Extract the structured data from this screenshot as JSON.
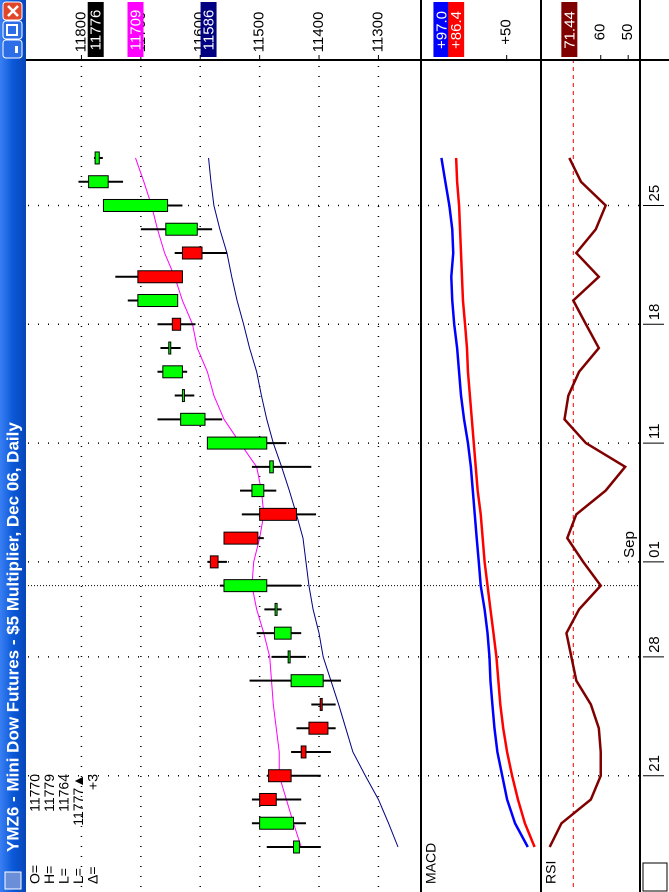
{
  "window_title": "YMZ6 - Mini Dow Futures - $5 Multiplier, Dec 06, Daily",
  "chart_data": [
    {
      "type": "candlestick",
      "categories": [
        null,
        null,
        null,
        "21",
        null,
        null,
        null,
        null,
        "28",
        null,
        null,
        null,
        "01",
        null,
        null,
        null,
        null,
        "11",
        null,
        null,
        null,
        null,
        "18",
        null,
        null,
        null,
        null,
        "25",
        null,
        null
      ],
      "month_label": "Sep",
      "open": [
        11433,
        11443,
        11500,
        11485,
        11430,
        11417,
        11398,
        11393,
        11451,
        11447,
        11473,
        11488,
        11583,
        11560,
        11500,
        11493,
        11477,
        11488,
        11592,
        11629,
        11630,
        11652,
        11647,
        11638,
        11705,
        11630,
        11605,
        11655,
        11755,
        11770
      ],
      "high": [
        11488,
        11513,
        11513,
        11488,
        11447,
        11438,
        11413,
        11517,
        11480,
        11505,
        11492,
        11567,
        11588,
        11560,
        11530,
        11533,
        11513,
        11588,
        11672,
        11643,
        11672,
        11667,
        11672,
        11722,
        11743,
        11643,
        11700,
        11763,
        11805,
        11779
      ],
      "low": [
        11397,
        11422,
        11430,
        11397,
        11380,
        11372,
        11372,
        11363,
        11422,
        11430,
        11463,
        11430,
        11555,
        11493,
        11405,
        11472,
        11413,
        11455,
        11563,
        11610,
        11622,
        11633,
        11608,
        11638,
        11630,
        11555,
        11580,
        11630,
        11730,
        11764
      ],
      "close": [
        11443,
        11500,
        11472,
        11447,
        11422,
        11385,
        11397,
        11447,
        11452,
        11475,
        11474,
        11560,
        11570,
        11503,
        11438,
        11513,
        11483,
        11588,
        11633,
        11630,
        11663,
        11653,
        11633,
        11705,
        11630,
        11597,
        11658,
        11763,
        11788,
        11777
      ],
      "up_color": "#00ff00",
      "down_color": "#ff0000",
      "overlays": [
        {
          "color": "#ff00ff",
          "values": [
            11430,
            11443,
            11455,
            11467,
            11467,
            11472,
            11477,
            11480,
            11483,
            11493,
            11505,
            11513,
            11510,
            11500,
            11493,
            11497,
            11505,
            11533,
            11560,
            11577,
            11588,
            11605,
            11613,
            11630,
            11643,
            11660,
            11672,
            11682,
            11695,
            11709
          ]
        },
        {
          "color": "#000080",
          "values": [
            11267,
            11283,
            11300,
            11322,
            11343,
            11355,
            11367,
            11380,
            11393,
            11400,
            11410,
            11417,
            11422,
            11427,
            11438,
            11450,
            11463,
            11477,
            11488,
            11497,
            11505,
            11517,
            11527,
            11538,
            11547,
            11555,
            11567,
            11577,
            11582,
            11586
          ]
        }
      ],
      "ylim": [
        11230,
        11890
      ],
      "yticks": [
        11300,
        11400,
        11500,
        11600,
        11700,
        11800
      ],
      "grid": true,
      "markers": [
        {
          "value": 11776,
          "color": "#000000"
        },
        {
          "value": 11709,
          "color": "#ff00ff"
        },
        {
          "value": 11586,
          "color": "#000080"
        }
      ],
      "readout": {
        "labels": [
          "O=",
          "H=",
          "L=",
          "L=",
          "Δ="
        ],
        "values": [
          11770,
          11779,
          11764,
          11777,
          3
        ],
        "value_labels": [
          "11770",
          "11779",
          "11764",
          "11777▲",
          "+3"
        ]
      }
    },
    {
      "type": "line",
      "label": "MACD",
      "series": [
        {
          "color": "#0000ff",
          "last_label": "+97.0",
          "values": [
            34.8,
            44.0,
            49.7,
            53.2,
            56.7,
            58.8,
            60.3,
            61.7,
            62.4,
            63.8,
            65.9,
            68.7,
            70.1,
            71.6,
            73.0,
            74.4,
            75.8,
            77.9,
            80.7,
            82.9,
            84.3,
            85.7,
            87.8,
            89.2,
            89.9,
            88.5,
            89.2,
            91.3,
            94.2,
            97.0
          ]
        },
        {
          "color": "#ff0000",
          "last_label": "+86.4",
          "values": [
            29.9,
            36.9,
            41.9,
            46.1,
            49.7,
            52.5,
            54.6,
            56.0,
            57.4,
            59.5,
            61.7,
            63.8,
            65.9,
            67.3,
            68.7,
            70.9,
            72.3,
            73.7,
            75.1,
            76.5,
            77.9,
            78.6,
            80.0,
            81.5,
            82.2,
            82.9,
            83.6,
            84.3,
            85.7,
            86.4
          ]
        }
      ],
      "ylim": [
        26,
        111
      ],
      "yticks": [
        {
          "value": 50,
          "label": "+50"
        }
      ]
    },
    {
      "type": "line",
      "label": "RSI",
      "series": [
        {
          "color": "#800000",
          "values": [
            78.6,
            74.3,
            63.6,
            60.0,
            60.0,
            60.7,
            63.6,
            68.9,
            70.7,
            72.5,
            67.9,
            60.0,
            66.4,
            72.2,
            68.9,
            58.2,
            51.1,
            65.4,
            73.2,
            71.8,
            67.9,
            60.7,
            65.4,
            70.0,
            60.7,
            68.9,
            61.8,
            58.2,
            67.2,
            71.44
          ]
        }
      ],
      "ylim": [
        45.7,
        81.4
      ],
      "yticks": [
        50,
        60
      ],
      "ref_line": 70,
      "ref_color": "#ff0000"
    }
  ]
}
